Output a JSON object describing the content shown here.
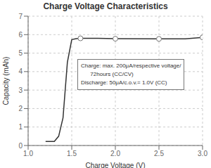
{
  "chart_data": {
    "type": "line",
    "title": "Charge Voltage Characteristics",
    "x_label": "Charge Voltage (V)",
    "y_label": "Capacity (mAh)",
    "xlim": [
      1.0,
      3.0
    ],
    "ylim": [
      0,
      7
    ],
    "xticks": [
      {
        "value": 1.0,
        "label": "1.0"
      },
      1.5,
      {
        "value": 2.0,
        "label": "2.0"
      },
      2.5,
      {
        "value": 3.0,
        "label": "3.0"
      }
    ],
    "yticks": [
      0,
      1,
      2,
      3,
      4,
      5,
      6,
      7
    ],
    "series": [
      {
        "type": "line",
        "color": "#333333",
        "x": [
          1.2,
          1.3,
          1.35,
          1.4,
          1.45,
          1.5,
          1.55,
          1.6,
          1.8,
          2.0,
          2.5,
          2.8,
          3.0
        ],
        "values": [
          0.22,
          0.22,
          0.5,
          1.5,
          4.5,
          5.73,
          5.78,
          5.8,
          5.8,
          5.78,
          5.77,
          5.77,
          5.85
        ]
      },
      {
        "type": "scatter",
        "marker": "circle",
        "color": "#777777",
        "x": [
          1.6,
          2.0,
          2.5,
          3.0
        ],
        "values": [
          5.8,
          5.78,
          5.77,
          5.85
        ]
      }
    ],
    "annotation": "Charge: max. 200μA/respective voltage/\n      72hours (CC/CV)\nDischarge: 50μA/c.o.v.= 1.0V (CC)",
    "grid": true
  }
}
